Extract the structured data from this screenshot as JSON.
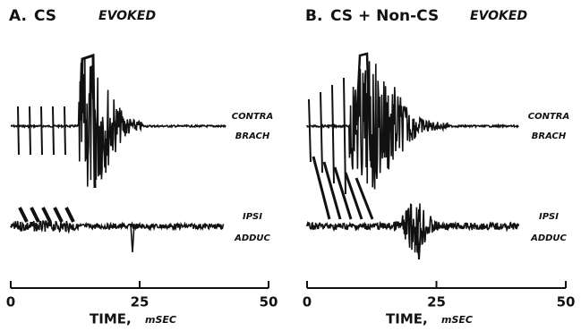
{
  "panels": [
    {
      "label": "A.",
      "title": "CS",
      "condition": "EVOKED",
      "top_trace": [
        "CONTRA",
        "BRACH"
      ],
      "bottom_trace": [
        "IPSI",
        "ADDUC"
      ],
      "ticks": [
        0,
        25,
        50
      ],
      "axis_label": "TIME,",
      "axis_unit": "mSEC"
    },
    {
      "label": "B.",
      "title": "CS + Non-CS",
      "condition": "EVOKED",
      "top_trace": [
        "CONTRA",
        "BRACH"
      ],
      "bottom_trace": [
        "IPSI",
        "ADDUC"
      ],
      "ticks": [
        0,
        25,
        50
      ],
      "axis_label": "TIME,",
      "axis_unit": "mSEC"
    }
  ]
}
